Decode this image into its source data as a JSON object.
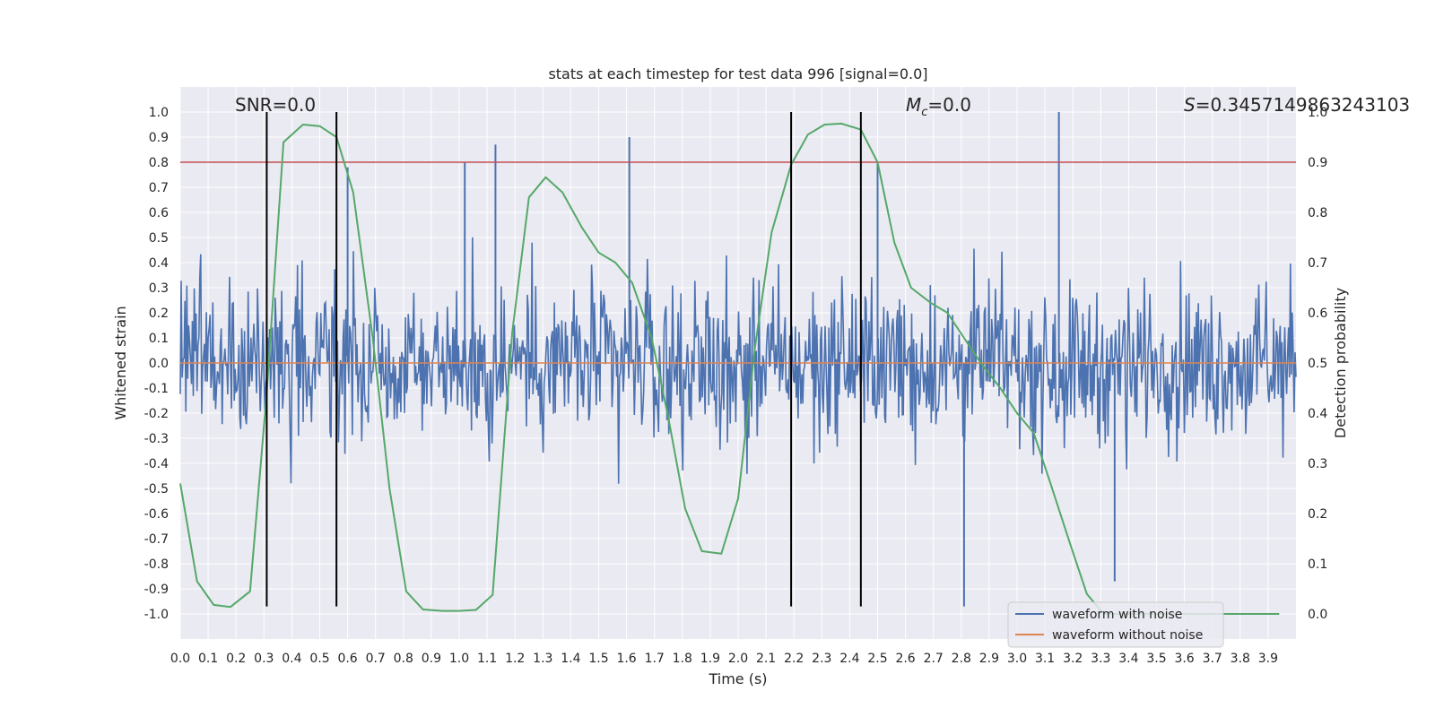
{
  "chart_data": {
    "type": "line",
    "title": "stats at each timestep for test data 996 [signal=0.0]",
    "xlabel": "Time (s)",
    "ylabel": "Whitened strain",
    "ylabel_right": "Detection probability",
    "xlim": [
      0.0,
      4.0
    ],
    "ylim": [
      -1.1,
      1.1
    ],
    "ylim_right": [
      -0.05,
      1.05
    ],
    "grid": true,
    "x_ticks": [
      0.0,
      0.1,
      0.2,
      0.3,
      0.4,
      0.5,
      0.6,
      0.7,
      0.8,
      0.9,
      1.0,
      1.1,
      1.2,
      1.3,
      1.4,
      1.5,
      1.6,
      1.7,
      1.8,
      1.9,
      2.0,
      2.1,
      2.2,
      2.3,
      2.4,
      2.5,
      2.6,
      2.7,
      2.8,
      2.9,
      3.0,
      3.1,
      3.2,
      3.3,
      3.4,
      3.5,
      3.6,
      3.7,
      3.8,
      3.9
    ],
    "x_tick_labels": [
      "0.0",
      "0.1",
      "0.2",
      "0.3",
      "0.4",
      "0.5",
      "0.6",
      "0.7",
      "0.8",
      "0.9",
      "1.0",
      "1.1",
      "1.2",
      "1.3",
      "1.4",
      "1.5",
      "1.6",
      "1.7",
      "1.8",
      "1.9",
      "2.0",
      "2.1",
      "2.2",
      "2.3",
      "2.4",
      "2.5",
      "2.6",
      "2.7",
      "2.8",
      "2.9",
      "3.0",
      "3.1",
      "3.2",
      "3.3",
      "3.4",
      "3.5",
      "3.6",
      "3.7",
      "3.8",
      "3.9"
    ],
    "y_ticks": [
      1.0,
      0.9,
      0.8,
      0.7,
      0.6,
      0.5,
      0.4,
      0.3,
      0.2,
      0.1,
      0.0,
      -0.1,
      -0.2,
      -0.3,
      -0.4,
      -0.5,
      -0.6,
      -0.7,
      -0.8,
      -0.9,
      -1.0
    ],
    "y_tick_labels": [
      "1.0",
      "0.9",
      "0.8",
      "0.7",
      "0.6",
      "0.5",
      "0.4",
      "0.3",
      "0.2",
      "0.1",
      "0.0",
      "-0.1",
      "-0.2",
      "-0.3",
      "-0.4",
      "-0.5",
      "-0.6",
      "-0.7",
      "-0.8",
      "-0.9",
      "-1.0"
    ],
    "y_right_ticks": [
      1.0,
      0.9,
      0.8,
      0.7,
      0.6,
      0.5,
      0.4,
      0.3,
      0.2,
      0.1,
      0.0
    ],
    "y_right_tick_labels": [
      "1.0",
      "0.9",
      "0.8",
      "0.7",
      "0.6",
      "0.5",
      "0.4",
      "0.3",
      "0.2",
      "0.1",
      "0.0"
    ],
    "annotations": {
      "snr": "SNR=0.0",
      "mc_symbol": "M",
      "mc_sub": "c",
      "mc_value": "=0.0",
      "s_symbol": "S",
      "s_value": "=0.3457149863243103"
    },
    "threshold_right": 0.9,
    "vertical_lines_x": [
      0.31,
      0.56,
      2.19,
      2.44
    ],
    "vertical_lines_range": [
      -0.97,
      1.0
    ],
    "noise_waveform": {
      "name": "waveform with noise",
      "samples": 1200,
      "seed": 996,
      "amplitude_envelope": 0.6,
      "spikes": [
        {
          "t": 1.13,
          "v": 0.87
        },
        {
          "t": 1.61,
          "v": 0.9
        },
        {
          "t": 3.15,
          "v": 1.0
        },
        {
          "t": 2.81,
          "v": -0.97
        },
        {
          "t": 3.35,
          "v": -0.87
        },
        {
          "t": 2.5,
          "v": 0.8
        },
        {
          "t": 1.02,
          "v": 0.8
        },
        {
          "t": 0.6,
          "v": 0.78
        }
      ]
    },
    "clean_waveform": {
      "name": "waveform without noise",
      "value": 0.0
    },
    "detection_probability": {
      "name": "detection probability",
      "x": [
        0.0,
        0.06,
        0.12,
        0.18,
        0.25,
        0.31,
        0.37,
        0.44,
        0.5,
        0.56,
        0.62,
        0.69,
        0.75,
        0.81,
        0.87,
        0.94,
        1.0,
        1.06,
        1.12,
        1.19,
        1.25,
        1.31,
        1.37,
        1.44,
        1.5,
        1.56,
        1.62,
        1.69,
        1.75,
        1.81,
        1.87,
        1.94,
        2.0,
        2.06,
        2.12,
        2.19,
        2.25,
        2.31,
        2.37,
        2.44,
        2.5,
        2.56,
        2.62,
        2.69,
        2.75,
        2.81,
        2.87,
        2.94,
        3.0,
        3.06,
        3.12,
        3.19,
        3.25,
        3.31,
        3.37,
        3.44,
        3.5,
        3.56,
        3.62,
        3.69,
        3.75,
        3.81,
        3.87,
        3.94
      ],
      "y": [
        0.26,
        0.065,
        0.018,
        0.014,
        0.045,
        0.44,
        0.94,
        0.975,
        0.972,
        0.95,
        0.84,
        0.55,
        0.25,
        0.045,
        0.009,
        0.006,
        0.006,
        0.008,
        0.038,
        0.56,
        0.83,
        0.87,
        0.84,
        0.77,
        0.72,
        0.7,
        0.66,
        0.55,
        0.39,
        0.21,
        0.125,
        0.12,
        0.23,
        0.53,
        0.76,
        0.895,
        0.955,
        0.975,
        0.977,
        0.965,
        0.9,
        0.74,
        0.65,
        0.62,
        0.6,
        0.55,
        0.5,
        0.45,
        0.4,
        0.36,
        0.26,
        0.14,
        0.04,
        0.0,
        0.0,
        0.0,
        0.0,
        0.0,
        0.0,
        0.0,
        0.0,
        0.0,
        0.0,
        0.0
      ]
    },
    "legend": {
      "placement": "lower-right",
      "entries": [
        "waveform with noise",
        "waveform without noise"
      ]
    },
    "colors": {
      "background": "#eaeaf2",
      "grid": "#ffffff",
      "noise": "#4c72b0",
      "clean": "#dd8452",
      "probability": "#55a868",
      "threshold": "#c44e52",
      "vlines": "#000000",
      "text": "#262626"
    }
  }
}
